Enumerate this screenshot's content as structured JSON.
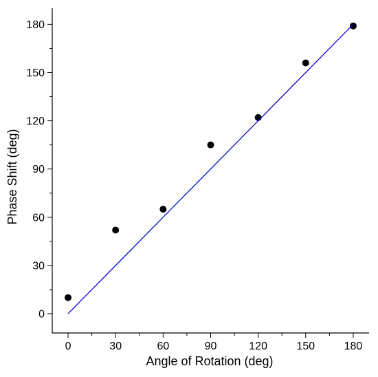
{
  "chart_data": {
    "type": "scatter",
    "title": "",
    "xlabel": "Angle of Rotation (deg)",
    "ylabel": "Phase Shift (deg)",
    "xlim": [
      -10,
      190
    ],
    "ylim": [
      -12,
      190
    ],
    "xticks": [
      0,
      30,
      60,
      90,
      120,
      150,
      180
    ],
    "yticks": [
      0,
      30,
      60,
      90,
      120,
      150,
      180
    ],
    "x_minor_ticks": [
      15,
      45,
      75,
      105,
      135,
      165
    ],
    "y_minor_ticks": [
      15,
      45,
      75,
      105,
      135,
      165
    ],
    "grid": false,
    "series": [
      {
        "kind": "points",
        "color": "#000000",
        "x": [
          0,
          30,
          60,
          90,
          120,
          150,
          180
        ],
        "y": [
          10,
          52,
          65,
          105,
          122,
          156,
          179
        ]
      },
      {
        "kind": "line",
        "color": "#0000cc",
        "x": [
          0,
          180
        ],
        "y": [
          0,
          180
        ]
      }
    ]
  }
}
